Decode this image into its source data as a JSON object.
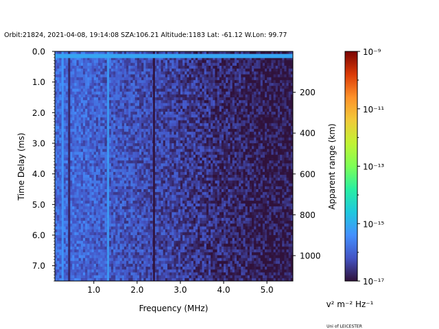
{
  "chart_data": {
    "type": "heatmap",
    "title": "Orbit:21824, 2021-04-08, 19:14:08 SZA:106.21 Altitude:1183 Lat: -61.12 W.Lon: 99.77",
    "xlabel": "Frequency (MHz)",
    "ylabel": "Time Delay (ms)",
    "y2label": "Apparent range (km)",
    "xlim": [
      0.1,
      5.6
    ],
    "ylim": [
      7.5,
      0.0
    ],
    "x_ticks": [
      {
        "value": 1.0,
        "label": "1.0"
      },
      {
        "value": 2.0,
        "label": "2.0"
      },
      {
        "value": 3.0,
        "label": "3.0"
      },
      {
        "value": 4.0,
        "label": "4.0"
      },
      {
        "value": 5.0,
        "label": "5.0"
      }
    ],
    "y_ticks": [
      {
        "value": 0.0,
        "label": "0.0"
      },
      {
        "value": 1.0,
        "label": "1.0"
      },
      {
        "value": 2.0,
        "label": "2.0"
      },
      {
        "value": 3.0,
        "label": "3.0"
      },
      {
        "value": 4.0,
        "label": "4.0"
      },
      {
        "value": 5.0,
        "label": "5.0"
      },
      {
        "value": 6.0,
        "label": "6.0"
      },
      {
        "value": 7.0,
        "label": "7.0"
      }
    ],
    "y2_ticks": [
      {
        "value": 200,
        "label": "200"
      },
      {
        "value": 400,
        "label": "400"
      },
      {
        "value": 600,
        "label": "600"
      },
      {
        "value": 800,
        "label": "800"
      },
      {
        "value": 1000,
        "label": "1000"
      }
    ],
    "y2_km_per_ms": 149.9,
    "colorbar": {
      "label": "v² m⁻² Hz⁻¹",
      "scale": "log",
      "range": [
        1e-17,
        1e-09
      ],
      "ticks": [
        {
          "exp": -9,
          "label": "10⁻⁹"
        },
        {
          "exp": -11,
          "label": "10⁻¹¹"
        },
        {
          "exp": -13,
          "label": "10⁻¹³"
        },
        {
          "exp": -15,
          "label": "10⁻¹⁵"
        },
        {
          "exp": -17,
          "label": "10⁻¹⁷"
        }
      ]
    },
    "features": [
      {
        "kind": "vertical-line",
        "freq_mhz": 0.28,
        "level_exp": -15.3,
        "label": "bright sounding frequency"
      },
      {
        "kind": "vertical-line",
        "freq_mhz": 1.33,
        "level_exp": -15.2,
        "label": "bright sounding frequency"
      },
      {
        "kind": "vertical-line",
        "freq_mhz": 2.39,
        "level_exp": -17.0,
        "label": "dark gap"
      },
      {
        "kind": "vertical-line",
        "freq_mhz": 0.43,
        "level_exp": -16.8,
        "label": "dark gap"
      },
      {
        "kind": "horizontal-band",
        "delay_ms": 0.15,
        "level_exp": -15.1,
        "label": "transmitter pulse"
      }
    ],
    "background_level_exp": {
      "low_freq": -15.9,
      "high_freq": -16.9
    }
  },
  "credit": "Uni of LEICESTER"
}
